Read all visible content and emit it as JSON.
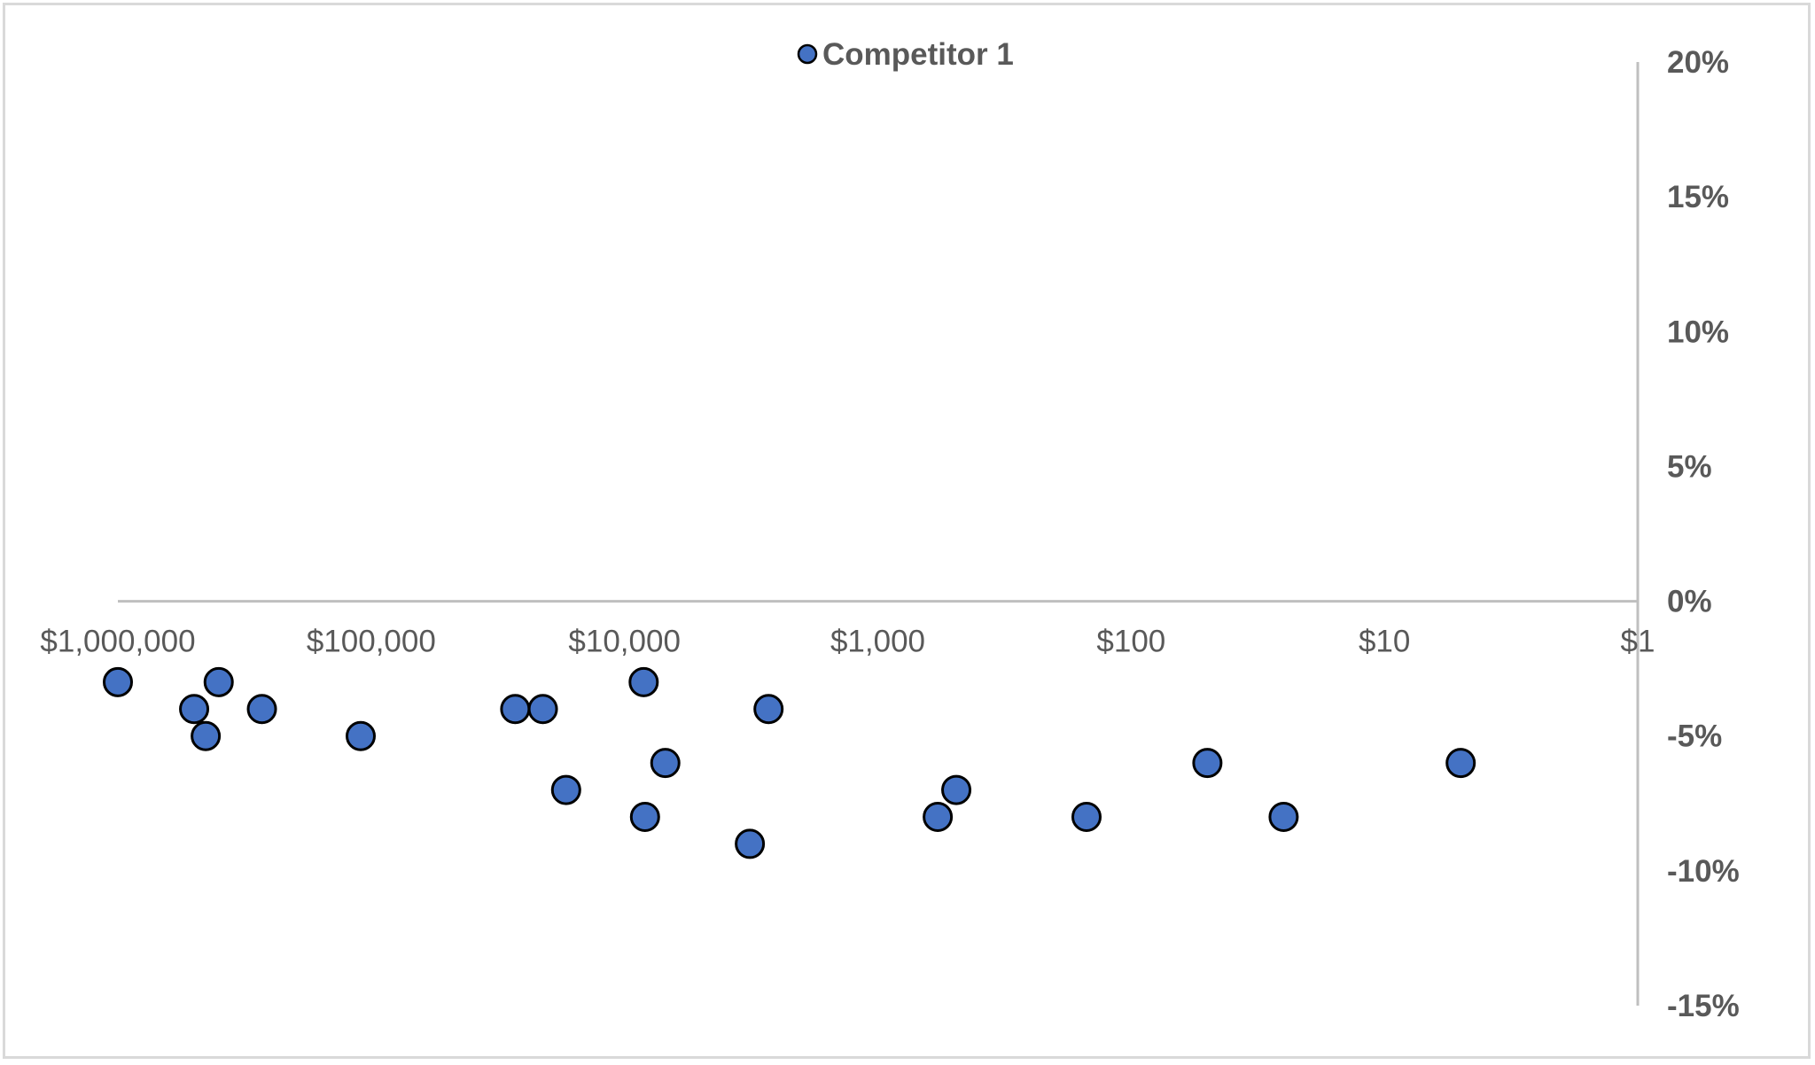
{
  "chart_data": {
    "type": "scatter",
    "x_scale": "log",
    "x_reversed": true,
    "xlim": [
      1,
      1000000
    ],
    "ylim": [
      -15,
      20
    ],
    "x_ticks": [
      1000000,
      100000,
      10000,
      1000,
      100,
      10,
      1
    ],
    "x_tick_labels": [
      "$1,000,000",
      "$100,000",
      "$10,000",
      "$1,000",
      "$100",
      "$10",
      "$1"
    ],
    "y_ticks": [
      20,
      15,
      10,
      5,
      0,
      -5,
      -10,
      -15
    ],
    "y_tick_labels": [
      "20%",
      "15%",
      "10%",
      "5%",
      "0%",
      "-5%",
      "-10%",
      "-15%"
    ],
    "y_axis_position": "right",
    "grid": false,
    "legend_position": "top",
    "series": [
      {
        "name": "Competitor 1",
        "color": "#4472c4",
        "points": [
          {
            "x": 1000000,
            "y": -3
          },
          {
            "x": 500000,
            "y": -4
          },
          {
            "x": 450000,
            "y": -5
          },
          {
            "x": 400000,
            "y": -3
          },
          {
            "x": 270000,
            "y": -4
          },
          {
            "x": 110000,
            "y": -5
          },
          {
            "x": 27000,
            "y": -4
          },
          {
            "x": 21000,
            "y": -4
          },
          {
            "x": 17000,
            "y": -7
          },
          {
            "x": 8400,
            "y": -3
          },
          {
            "x": 8300,
            "y": -8
          },
          {
            "x": 6900,
            "y": -6
          },
          {
            "x": 3200,
            "y": -9
          },
          {
            "x": 2700,
            "y": -4
          },
          {
            "x": 580,
            "y": -8
          },
          {
            "x": 490,
            "y": -7
          },
          {
            "x": 150,
            "y": -8
          },
          {
            "x": 50,
            "y": -6
          },
          {
            "x": 25,
            "y": -8
          },
          {
            "x": 5,
            "y": -6
          }
        ]
      }
    ]
  }
}
